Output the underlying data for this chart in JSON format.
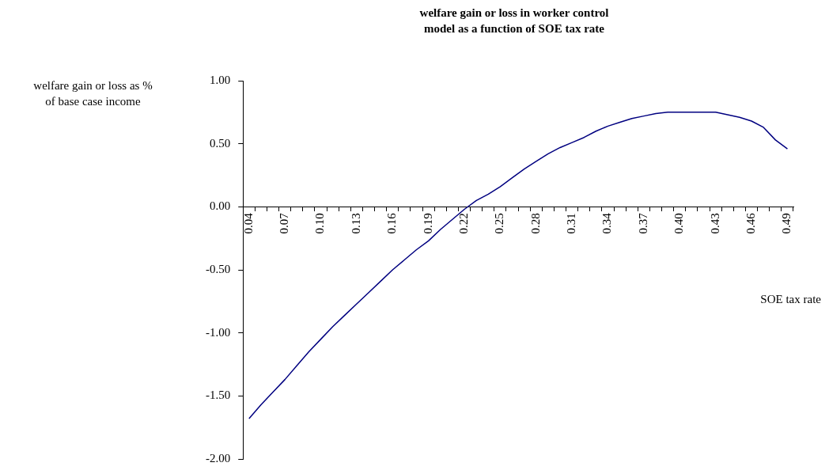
{
  "chart_data": {
    "type": "line",
    "title": "welfare gain or loss in worker control\nmodel as a function of SOE tax rate",
    "ylabel": "welfare gain or loss as %\nof base case income",
    "xlabel": "SOE tax rate",
    "categories": [
      "0.04",
      null,
      null,
      "0.07",
      null,
      null,
      "0.10",
      null,
      null,
      "0.13",
      null,
      null,
      "0.16",
      null,
      null,
      "0.19",
      null,
      null,
      "0.22",
      null,
      null,
      "0.25",
      null,
      null,
      "0.28",
      null,
      null,
      "0.31",
      null,
      null,
      "0.34",
      null,
      null,
      "0.37",
      null,
      null,
      "0.40",
      null,
      null,
      "0.43",
      null,
      null,
      "0.46",
      null,
      null,
      "0.49"
    ],
    "series": [
      {
        "color": "#000080",
        "values": [
          -1.68,
          -1.57,
          -1.47,
          -1.37,
          -1.26,
          -1.15,
          -1.05,
          -0.95,
          -0.86,
          -0.77,
          -0.68,
          -0.59,
          -0.5,
          -0.42,
          -0.34,
          -0.27,
          -0.18,
          -0.1,
          -0.02,
          0.05,
          0.1,
          0.16,
          0.23,
          0.3,
          0.36,
          0.42,
          0.47,
          0.51,
          0.55,
          0.6,
          0.64,
          0.67,
          0.7,
          0.72,
          0.74,
          0.75,
          0.75,
          0.75,
          0.75,
          0.75,
          0.73,
          0.71,
          0.68,
          0.63,
          0.53,
          0.46
        ]
      }
    ],
    "ylim": [
      -2,
      1
    ],
    "yticks": [
      {
        "value": -2,
        "label": "-2.00"
      },
      {
        "value": -1.5,
        "label": "-1.50"
      },
      {
        "value": -1,
        "label": "-1.00"
      },
      {
        "value": -0.5,
        "label": "-0.50"
      },
      {
        "value": 0,
        "label": "0.00"
      },
      {
        "value": 0.5,
        "label": "0.50"
      },
      {
        "value": 1,
        "label": "1.00"
      }
    ],
    "grid": false,
    "legend": false,
    "marker": "none",
    "line_style": "solid"
  }
}
